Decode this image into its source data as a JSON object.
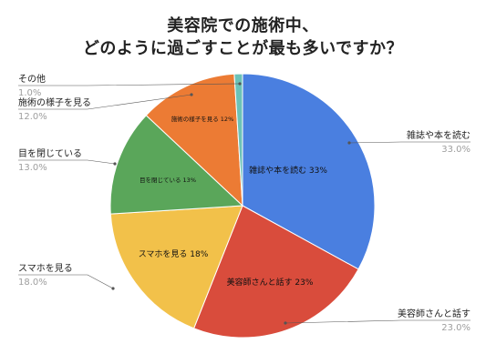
{
  "chart_data": {
    "type": "pie",
    "title": [
      "美容院での施術中、",
      "どのように過ごすことが最も多いですか？"
    ],
    "categories": [
      "雑誌や本を読む",
      "美容師さんと話す",
      "スマホを見る",
      "目を閉じている",
      "施術の様子を見る",
      "その他"
    ],
    "values": [
      33.0,
      23.0,
      18.0,
      13.0,
      12.0,
      1.0
    ],
    "value_labels": [
      "33.0%",
      "23.0%",
      "18.0%",
      "13.0%",
      "12.0%",
      "1.0%"
    ],
    "slice_labels": [
      "雑誌や本を読む 33%",
      "美容師さんと話す 23%",
      "スマホを見る 18%",
      "目を閉じている 13%",
      "施術の様子を見る 12%",
      ""
    ],
    "colors": [
      "#4a7fe0",
      "#d94c3c",
      "#f2c14a",
      "#5aa65a",
      "#ec7b34",
      "#6cc2b8"
    ],
    "legend": "outside-labels"
  }
}
